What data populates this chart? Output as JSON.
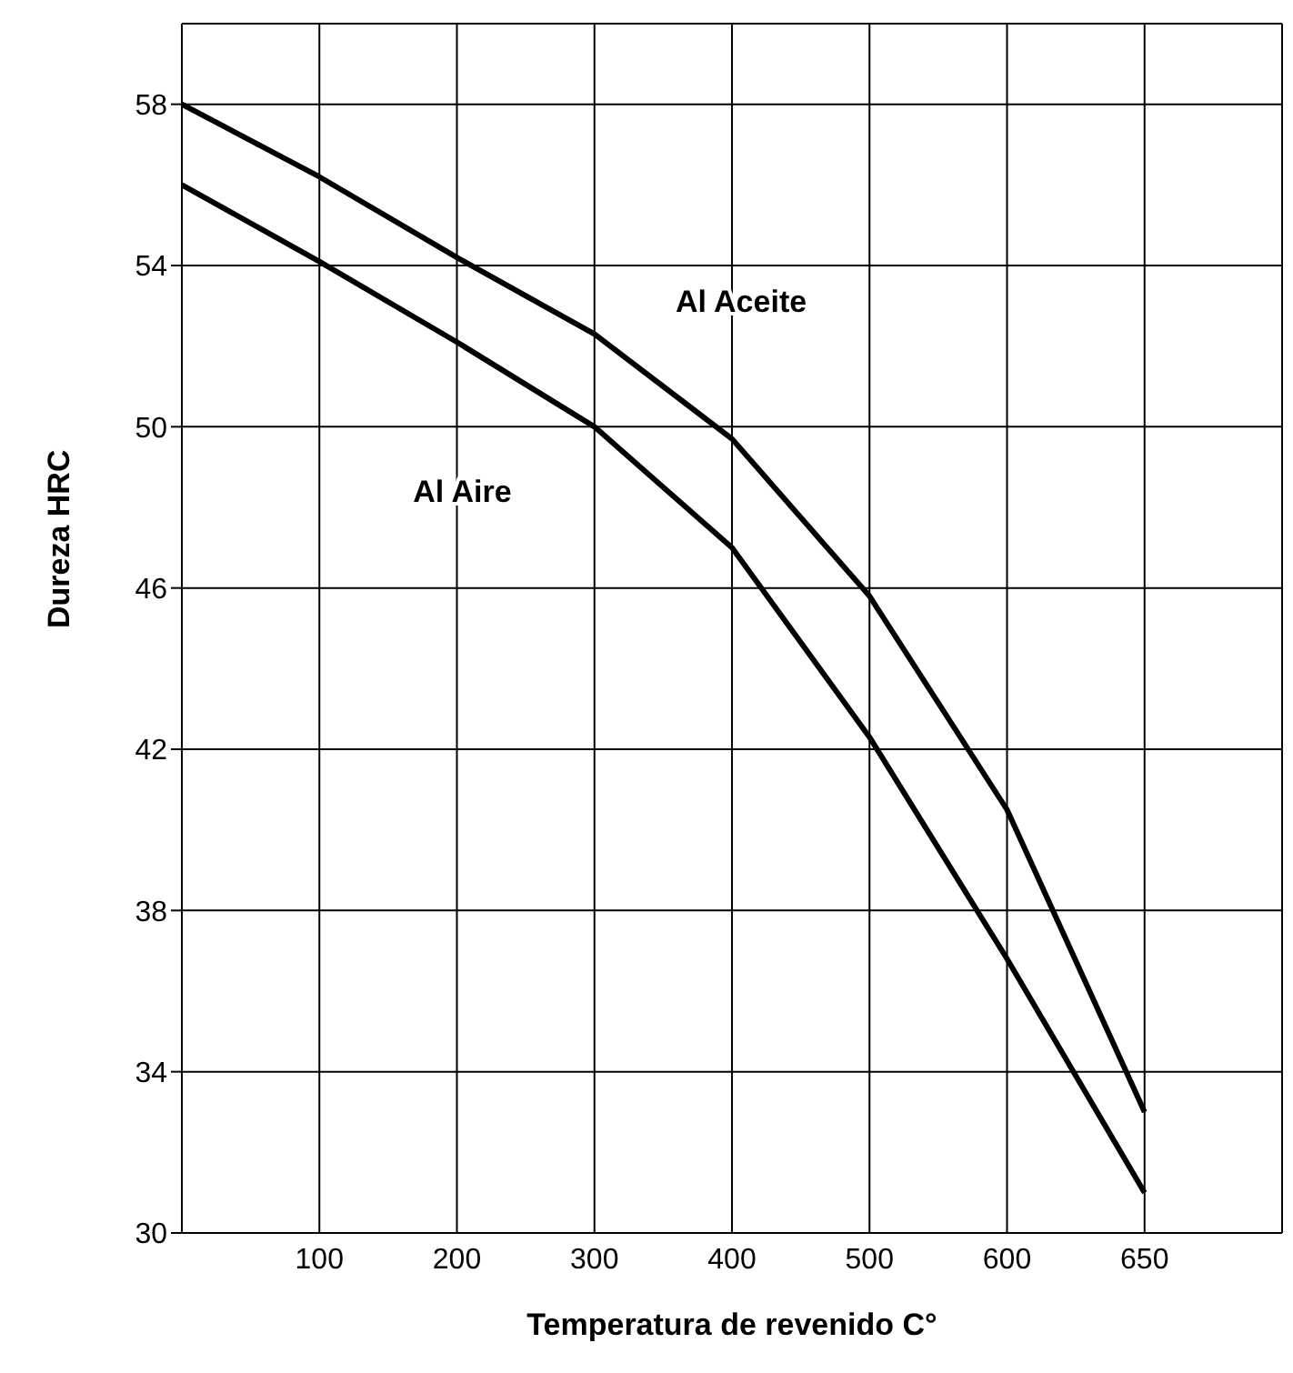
{
  "chart_data": {
    "type": "line",
    "xlabel": "Temperatura de revenido C°",
    "ylabel": "Dureza HRC",
    "categories": [
      null,
      "100",
      "200",
      "300",
      "400",
      "500",
      "600",
      "650",
      null
    ],
    "series": [
      {
        "name": "Al Aceite",
        "color": "#000000",
        "values": [
          58,
          56.2,
          54.2,
          52.3,
          49.7,
          45.8,
          40.5,
          33,
          null
        ]
      },
      {
        "name": "Al Aire",
        "color": "#000000",
        "values": [
          56,
          54.1,
          52.1,
          50,
          47,
          42.3,
          36.8,
          31,
          null
        ]
      }
    ],
    "ylim": [
      30,
      60
    ],
    "yticks": [
      30,
      34,
      38,
      42,
      46,
      50,
      54,
      58
    ],
    "grid": true,
    "marker": "none",
    "line_style": "solid",
    "legend": false
  }
}
